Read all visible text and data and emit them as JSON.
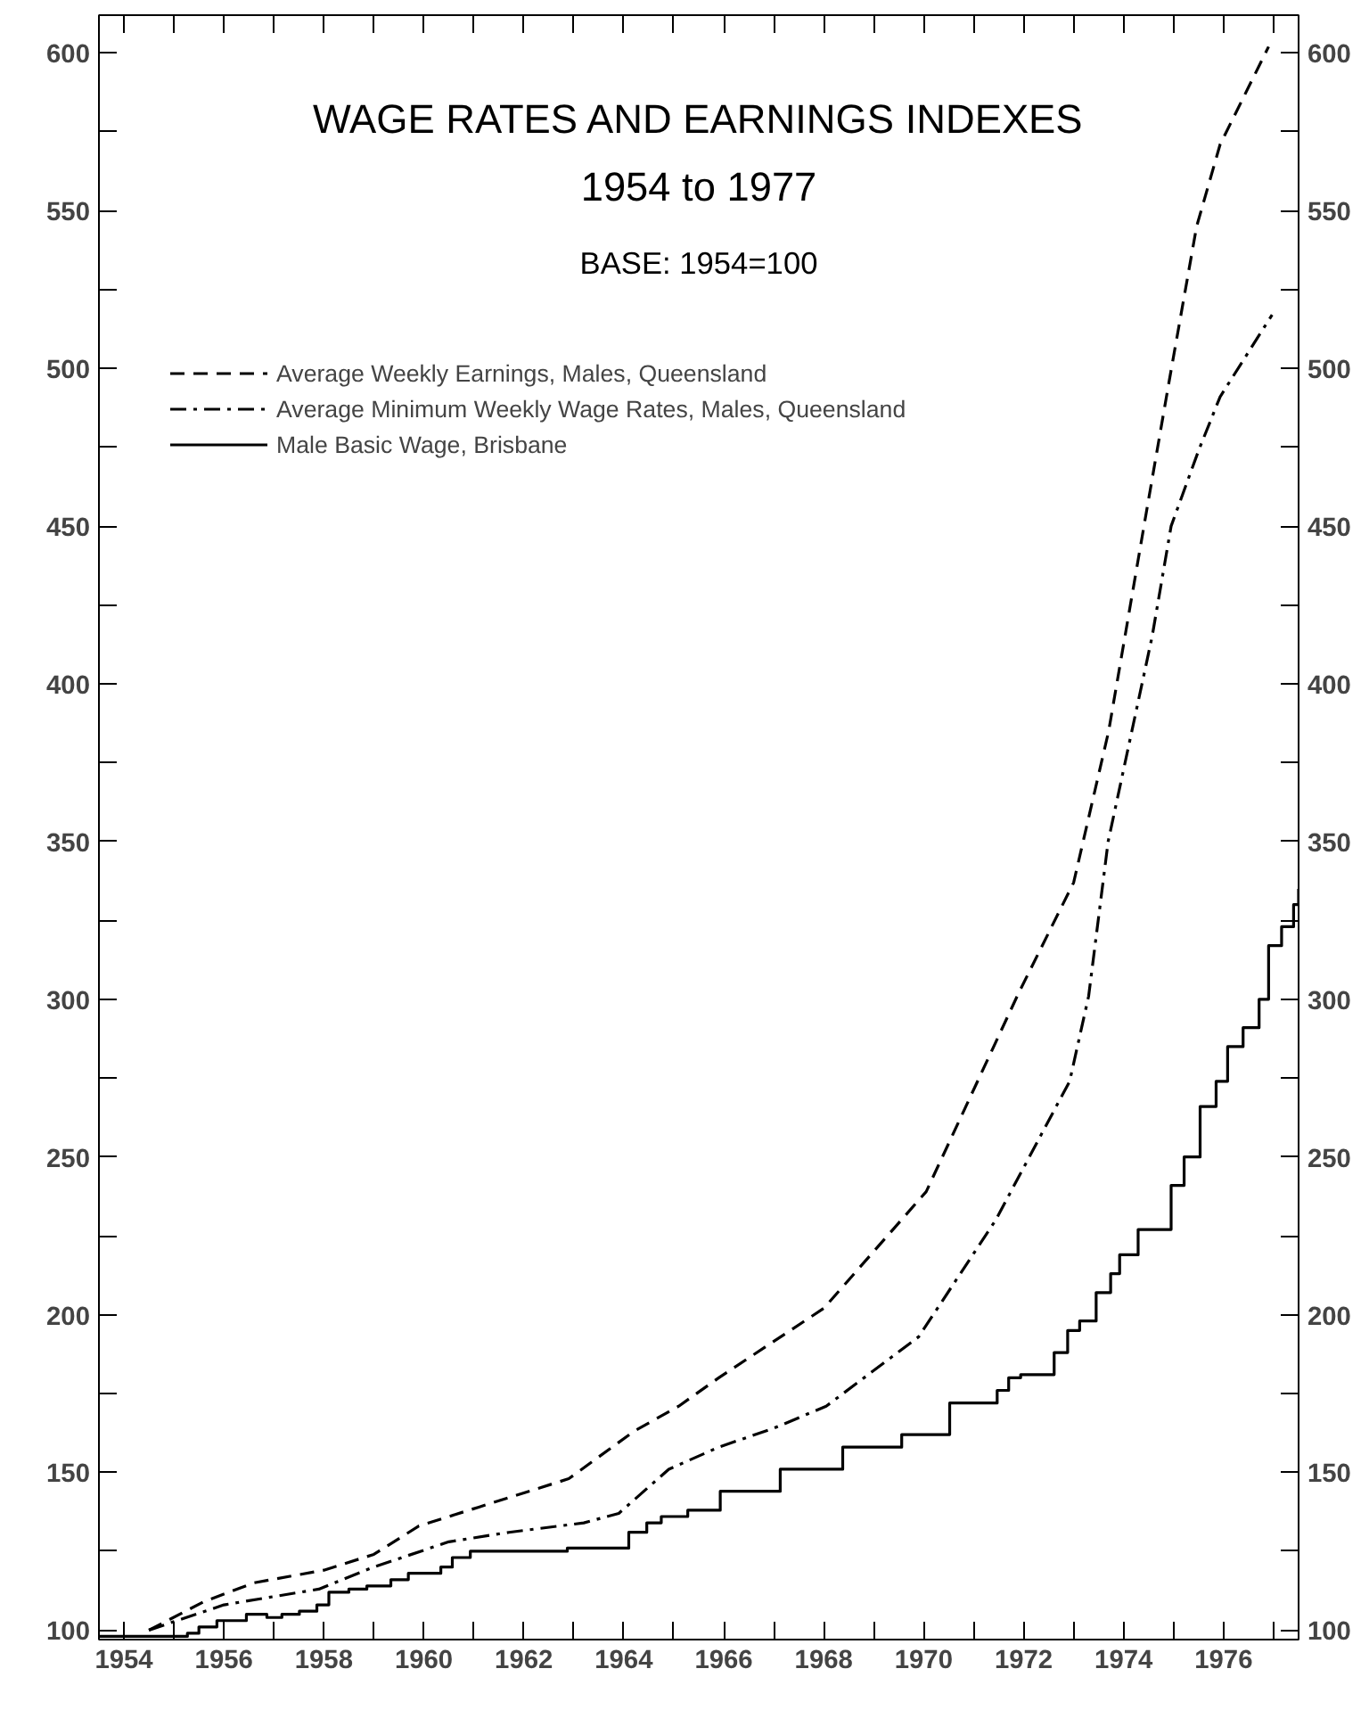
{
  "chart_data": {
    "type": "line",
    "title": "WAGE RATES AND EARNINGS INDEXES\n1954 to 1977",
    "subtitle": "BASE: 1954=100",
    "xlim": [
      1953.5,
      1977.5
    ],
    "ylim": [
      97,
      612
    ],
    "y2lim": [
      97,
      612
    ],
    "xticks": [
      1954,
      {
        "value": 1955,
        "label": null
      },
      1956,
      {
        "value": 1957,
        "label": null
      },
      1958,
      {
        "value": 1959,
        "label": null
      },
      1960,
      {
        "value": 1961,
        "label": null
      },
      1962,
      {
        "value": 1963,
        "label": null
      },
      1964,
      {
        "value": 1965,
        "label": null
      },
      1966,
      {
        "value": 1967,
        "label": null
      },
      1968,
      {
        "value": 1969,
        "label": null
      },
      1970,
      {
        "value": 1971,
        "label": null
      },
      1972,
      {
        "value": 1973,
        "label": null
      },
      1974,
      {
        "value": 1975,
        "label": null
      },
      1976,
      {
        "value": 1977,
        "label": null
      }
    ],
    "yticks": [
      100,
      {
        "value": 125,
        "label": null
      },
      150,
      {
        "value": 175,
        "label": null
      },
      200,
      {
        "value": 225,
        "label": null
      },
      250,
      {
        "value": 275,
        "label": null
      },
      300,
      {
        "value": 325,
        "label": null
      },
      350,
      {
        "value": 375,
        "label": null
      },
      400,
      {
        "value": 425,
        "label": null
      },
      450,
      {
        "value": 475,
        "label": null
      },
      500,
      {
        "value": 525,
        "label": null
      },
      550,
      {
        "value": 575,
        "label": null
      },
      600
    ],
    "y2ticks": [
      100,
      {
        "value": 125,
        "label": null
      },
      150,
      {
        "value": 175,
        "label": null
      },
      200,
      {
        "value": 225,
        "label": null
      },
      250,
      {
        "value": 275,
        "label": null
      },
      300,
      {
        "value": 325,
        "label": null
      },
      350,
      {
        "value": 375,
        "label": null
      },
      400,
      {
        "value": 425,
        "label": null
      },
      450,
      {
        "value": 475,
        "label": null
      },
      500,
      {
        "value": 525,
        "label": null
      },
      550,
      {
        "value": 575,
        "label": null
      },
      600
    ],
    "grid": false,
    "legend": "top left",
    "marker": "none",
    "series": [
      {
        "name": "Average Weekly Earnings, Males, Queensland",
        "color": "#000000",
        "line_style": "dashed",
        "x": [
          1954.5,
          1955.6,
          1956.6,
          1958.0,
          1959.0,
          1959.9,
          1961.1,
          1962.9,
          1964.2,
          1965.1,
          1965.9,
          1968.0,
          1970.05,
          1971.9,
          1973.0,
          1973.7,
          1974.45,
          1974.9,
          1975.46,
          1975.93,
          1976.9
        ],
        "values": [
          100,
          109,
          115,
          119,
          124,
          133,
          139,
          148,
          163,
          171,
          180,
          202,
          239,
          302,
          337,
          385,
          454,
          495,
          545,
          571,
          602
        ]
      },
      {
        "name": "Average Minimum Weekly Wage Rates, Males, Queensland",
        "color": "#000000",
        "line_style": "dashdot",
        "x": [
          1954.5,
          1956.0,
          1957.9,
          1959.0,
          1960.5,
          1961.7,
          1963.2,
          1963.9,
          1964.9,
          1965.9,
          1967.0,
          1968.05,
          1969.9,
          1971.44,
          1972.92,
          1973.3,
          1973.69,
          1974.57,
          1974.95,
          1975.5,
          1975.93,
          1976.97
        ],
        "values": [
          100,
          108,
          113,
          120,
          128,
          131,
          134,
          137,
          151,
          158,
          164,
          171,
          193,
          230,
          274,
          301,
          350,
          415,
          450,
          474,
          491,
          517
        ]
      },
      {
        "name": "Male Basic Wage, Brisbane",
        "color": "#000000",
        "line_style": "solid",
        "type": "step",
        "x": [
          1953.5,
          1955.27,
          1955.5,
          1955.86,
          1956.45,
          1956.86,
          1957.16,
          1957.51,
          1957.86,
          1958.1,
          1958.5,
          1958.86,
          1959.34,
          1959.69,
          1960.34,
          1960.57,
          1960.93,
          1962.87,
          1964.1,
          1964.46,
          1964.75,
          1965.28,
          1965.93,
          1967.13,
          1968.38,
          1969.56,
          1970.52,
          1971.47,
          1971.7,
          1971.94,
          1972.61,
          1972.88,
          1973.12,
          1973.45,
          1973.74,
          1973.92,
          1974.29,
          1974.95,
          1975.21,
          1975.53,
          1975.85,
          1976.08,
          1976.39,
          1976.71,
          1976.9,
          1977.16,
          1977.4,
          1977.5
        ],
        "values": [
          98,
          99,
          101,
          103,
          105,
          104,
          105,
          106,
          108,
          112,
          113,
          114,
          116,
          118,
          120,
          123,
          125,
          126,
          131,
          134,
          136,
          138,
          144,
          151,
          158,
          162,
          172,
          176,
          180,
          181,
          188,
          195,
          198,
          207,
          213,
          219,
          227,
          241,
          250,
          266,
          274,
          285,
          291,
          300,
          317,
          323,
          330,
          335
        ]
      }
    ]
  }
}
